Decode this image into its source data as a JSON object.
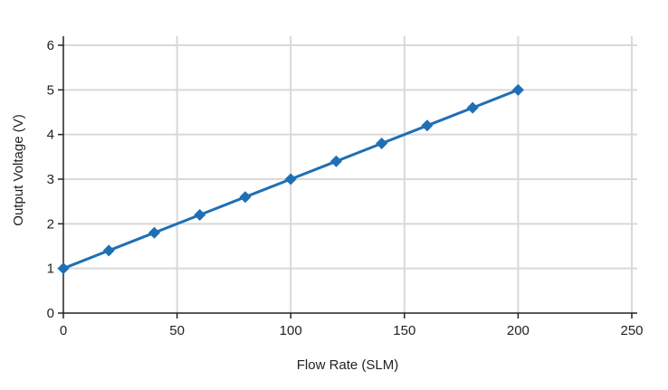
{
  "chart_data": {
    "type": "line",
    "xlabel": "Flow Rate  (SLM)",
    "ylabel": "Output Voltage (V)",
    "xlim": [
      0,
      250
    ],
    "ylim": [
      0,
      6
    ],
    "xticks": [
      0,
      50,
      100,
      150,
      200,
      250
    ],
    "yticks": [
      0,
      1,
      2,
      3,
      4,
      5,
      6
    ],
    "grid": true,
    "series": [
      {
        "color": "#1f6fb5",
        "marker": "diamond",
        "x": [
          0,
          20,
          40,
          60,
          80,
          100,
          120,
          140,
          160,
          180,
          200
        ],
        "y": [
          1.0,
          1.4,
          1.8,
          2.2,
          2.6,
          3.0,
          3.4,
          3.8,
          4.2,
          4.6,
          5.0
        ]
      }
    ]
  }
}
